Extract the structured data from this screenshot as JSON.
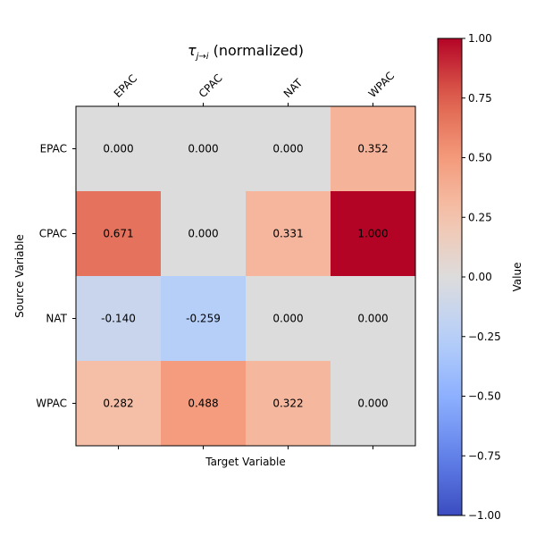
{
  "chart_data": {
    "type": "heatmap",
    "title": "τ",
    "title_subscript": "j→i",
    "title_suffix": " (normalized)",
    "xlabel": "Target Variable",
    "ylabel": "Source Variable",
    "x_categories": [
      "EPAC",
      "CPAC",
      "NAT",
      "WPAC"
    ],
    "y_categories": [
      "EPAC",
      "CPAC",
      "NAT",
      "WPAC"
    ],
    "x_tick_position": "top",
    "values": [
      [
        0.0,
        0.0,
        0.0,
        0.352
      ],
      [
        0.671,
        0.0,
        0.331,
        1.0
      ],
      [
        -0.14,
        -0.259,
        0.0,
        0.0
      ],
      [
        0.282,
        0.488,
        0.322,
        0.0
      ]
    ],
    "value_labels": [
      [
        "0.000",
        "0.000",
        "0.000",
        "0.352"
      ],
      [
        "0.671",
        "0.000",
        "0.331",
        "1.000"
      ],
      [
        "-0.140",
        "-0.259",
        "0.000",
        "0.000"
      ],
      [
        "0.282",
        "0.488",
        "0.322",
        "0.000"
      ]
    ],
    "colormap": "coolwarm",
    "vmin": -1.0,
    "vmax": 1.0,
    "colorbar": {
      "label": "Value",
      "ticks": [
        1.0,
        0.75,
        0.5,
        0.25,
        0.0,
        -0.25,
        -0.5,
        -0.75,
        -1.0
      ],
      "tick_labels": [
        "1.00",
        "0.75",
        "0.50",
        "0.25",
        "0.00",
        "−0.25",
        "−0.50",
        "−0.75",
        "−1.00"
      ]
    },
    "grid": false
  }
}
